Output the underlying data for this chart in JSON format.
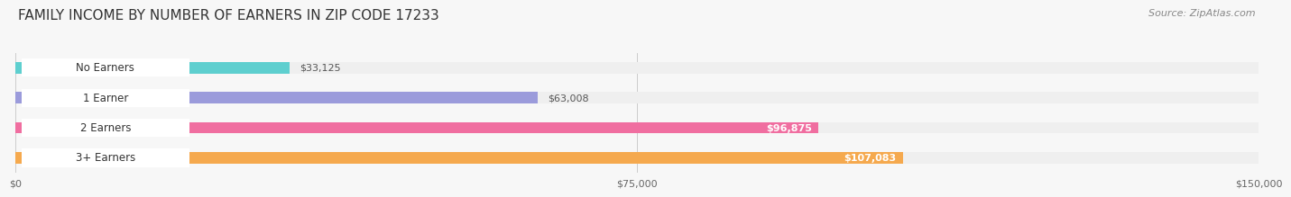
{
  "title": "FAMILY INCOME BY NUMBER OF EARNERS IN ZIP CODE 17233",
  "source": "Source: ZipAtlas.com",
  "categories": [
    "No Earners",
    "1 Earner",
    "2 Earners",
    "3+ Earners"
  ],
  "values": [
    33125,
    63008,
    96875,
    107083
  ],
  "bar_colors": [
    "#5ecfcf",
    "#9b9bdb",
    "#f06ea0",
    "#f5a94e"
  ],
  "bar_labels": [
    "$33,125",
    "$63,008",
    "$96,875",
    "$107,083"
  ],
  "xmax": 150000,
  "xticks": [
    0,
    75000,
    150000
  ],
  "xticklabels": [
    "$0",
    "$75,000",
    "$150,000"
  ],
  "bg_color": "#f7f7f7",
  "bar_bg_color": "#efefef",
  "label_outside_color": "#555555",
  "label_inside_color": "#ffffff",
  "label_inside_threshold": 80000,
  "title_fontsize": 11,
  "source_fontsize": 8,
  "label_fontsize": 8,
  "tick_fontsize": 8,
  "category_fontsize": 8.5,
  "pill_bg_color": "#ffffff",
  "pill_border_color": "#dddddd"
}
